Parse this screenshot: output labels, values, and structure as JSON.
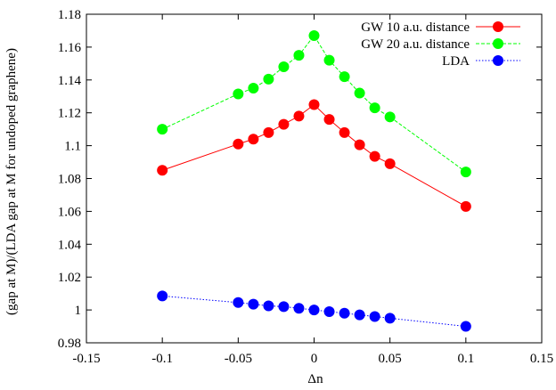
{
  "chart_data": {
    "type": "line",
    "title": "",
    "xlabel": "Δn",
    "ylabel": "(gap at M)/(LDA gap at M for undoped graphene)",
    "xlim": [
      -0.15,
      0.15
    ],
    "ylim": [
      0.98,
      1.18
    ],
    "x_ticks": [
      -0.15,
      -0.1,
      -0.05,
      0,
      0.05,
      0.1,
      0.15
    ],
    "x_tick_labels": [
      "-0.15",
      "-0.1",
      "-0.05",
      "0",
      "0.05",
      "0.1",
      "0.15"
    ],
    "y_ticks": [
      0.98,
      1.0,
      1.02,
      1.04,
      1.06,
      1.08,
      1.1,
      1.12,
      1.14,
      1.16,
      1.18
    ],
    "y_tick_labels": [
      "0.98",
      "1",
      "1.02",
      "1.04",
      "1.06",
      "1.08",
      "1.1",
      "1.12",
      "1.14",
      "1.16",
      "1.18"
    ],
    "grid": false,
    "legend_position": "top-right",
    "series": [
      {
        "name": "GW 10 a.u. distance",
        "color": "#ff0000",
        "line_style": "solid",
        "x": [
          -0.1,
          -0.05,
          -0.04,
          -0.03,
          -0.02,
          -0.01,
          0,
          0.01,
          0.02,
          0.03,
          0.04,
          0.05,
          0.1
        ],
        "y": [
          1.085,
          1.101,
          1.104,
          1.108,
          1.113,
          1.118,
          1.125,
          1.116,
          1.108,
          1.1005,
          1.0935,
          1.089,
          1.063
        ]
      },
      {
        "name": "GW 20 a.u. distance",
        "color": "#00ff00",
        "line_style": "dashed",
        "x": [
          -0.1,
          -0.05,
          -0.04,
          -0.03,
          -0.02,
          -0.01,
          0,
          0.01,
          0.02,
          0.03,
          0.04,
          0.05,
          0.1
        ],
        "y": [
          1.11,
          1.1315,
          1.135,
          1.1405,
          1.148,
          1.155,
          1.167,
          1.152,
          1.142,
          1.132,
          1.123,
          1.1175,
          1.084
        ]
      },
      {
        "name": "LDA",
        "color": "#0000ff",
        "line_style": "dotted",
        "x": [
          -0.1,
          -0.05,
          -0.04,
          -0.03,
          -0.02,
          -0.01,
          0,
          0.01,
          0.02,
          0.03,
          0.04,
          0.05,
          0.1
        ],
        "y": [
          1.0085,
          1.0045,
          1.0035,
          1.0025,
          1.002,
          1.001,
          1.0,
          0.999,
          0.998,
          0.997,
          0.996,
          0.995,
          0.99
        ]
      }
    ]
  }
}
